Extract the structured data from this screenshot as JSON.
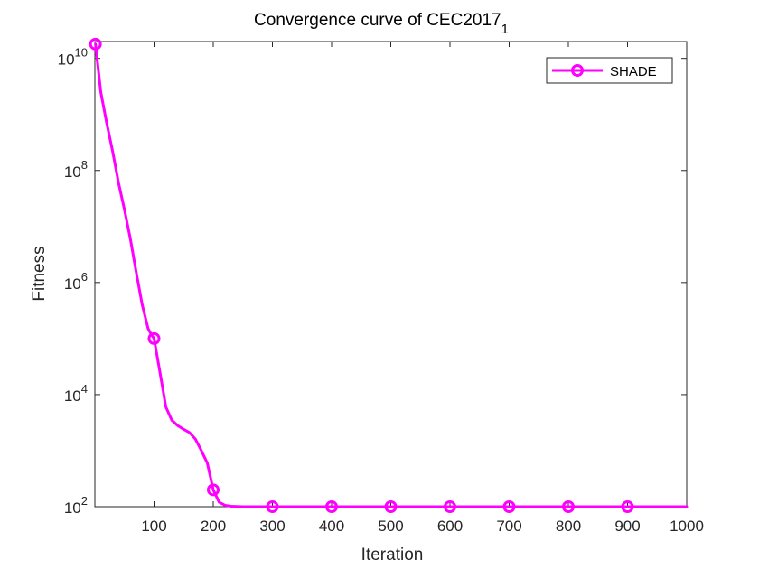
{
  "chart_data": {
    "type": "line",
    "title": "Convergence curve of CEC2017",
    "title_subscript": "1",
    "xlabel": "Iteration",
    "ylabel": "Fitness",
    "xlim": [
      0,
      1000
    ],
    "ylim": [
      100,
      20000000000
    ],
    "yscale": "log",
    "grid": false,
    "legend_position": "top-right",
    "x_ticks": [
      "100",
      "200",
      "300",
      "400",
      "500",
      "600",
      "700",
      "800",
      "900",
      "1000"
    ],
    "y_ticks": [
      {
        "base": "10",
        "exp": "2"
      },
      {
        "base": "10",
        "exp": "4"
      },
      {
        "base": "10",
        "exp": "6"
      },
      {
        "base": "10",
        "exp": "8"
      },
      {
        "base": "10",
        "exp": "10"
      }
    ],
    "series": [
      {
        "name": "SHADE",
        "color": "#ff00ff",
        "marker": "circle",
        "x": [
          1,
          10,
          20,
          30,
          40,
          50,
          60,
          70,
          80,
          90,
          95,
          100,
          110,
          120,
          130,
          140,
          150,
          160,
          170,
          180,
          190,
          200,
          210,
          220,
          230,
          240,
          250,
          270,
          300,
          400,
          500,
          600,
          700,
          800,
          900,
          1000
        ],
        "y": [
          18000000000,
          2500000000,
          700000000,
          220000000,
          60000000,
          20000000,
          6000000,
          1500000,
          400000,
          150000,
          120000,
          100000,
          25000,
          6000,
          3500,
          2800,
          2400,
          2100,
          1600,
          1000,
          600,
          200,
          120,
          106,
          102,
          101,
          100,
          100,
          100,
          100,
          100,
          100,
          100,
          100,
          100,
          100
        ],
        "marker_x": [
          1,
          100,
          200,
          300,
          400,
          500,
          600,
          700,
          800,
          900
        ],
        "marker_y": [
          18000000000,
          100000,
          200,
          100,
          100,
          100,
          100,
          100,
          100,
          100
        ]
      }
    ]
  }
}
